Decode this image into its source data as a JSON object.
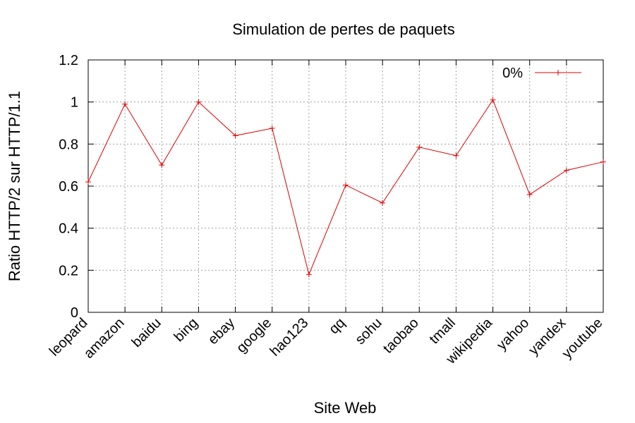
{
  "chart_data": {
    "type": "line",
    "title": "Simulation de pertes de paquets",
    "xlabel": "Site Web",
    "ylabel": "Ratio HTTP/2 sur HTTP/1.1",
    "categories": [
      "leopard",
      "amazon",
      "baidu",
      "bing",
      "ebay",
      "google",
      "hao123",
      "qq",
      "sohu",
      "taobao",
      "tmall",
      "wikipedia",
      "yahoo",
      "yandex",
      "youtube"
    ],
    "series": [
      {
        "name": "0%",
        "values": [
          0.62,
          0.99,
          0.7,
          1.0,
          0.84,
          0.875,
          0.18,
          0.605,
          0.52,
          0.785,
          0.745,
          1.01,
          0.56,
          0.675,
          0.715
        ]
      }
    ],
    "ylim": [
      0,
      1.2
    ],
    "yticks": [
      "0",
      "0.2",
      "0.4",
      "0.6",
      "0.8",
      "1",
      "1.2"
    ],
    "grid": true,
    "legend_position": "top-right",
    "series_color": "#e00000"
  }
}
